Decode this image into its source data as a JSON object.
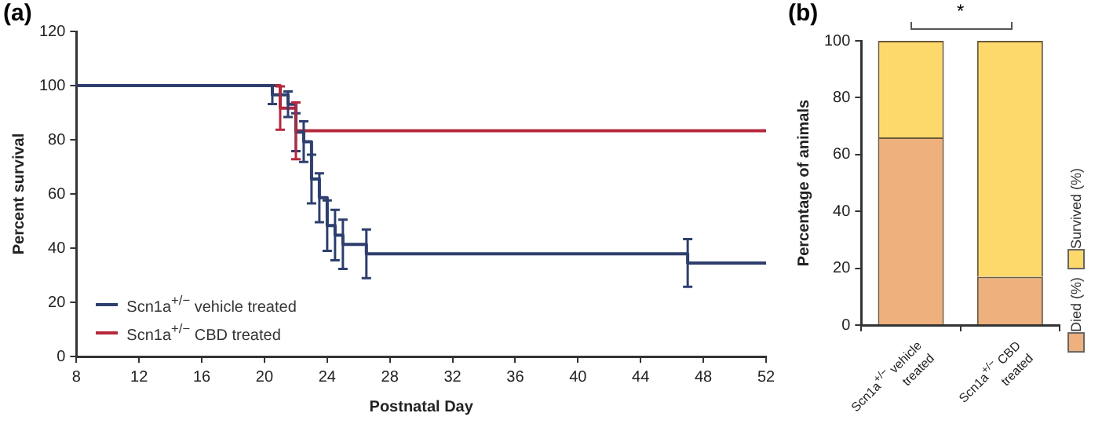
{
  "chart_data": [
    {
      "type": "step",
      "title": "(a)",
      "xlabel": "Postnatal Day",
      "ylabel": "Percent survival",
      "xlim": [
        8,
        52
      ],
      "xticks": [
        8,
        12,
        16,
        20,
        24,
        28,
        32,
        36,
        40,
        44,
        48,
        52
      ],
      "ylim": [
        0,
        120
      ],
      "yticks": [
        0,
        20,
        40,
        60,
        80,
        100,
        120
      ],
      "grid": false,
      "legend": "bottom left",
      "marker": "none",
      "series": [
        {
          "name": "Scn1a$^{+/−}$ vehicle treated",
          "color": "#2e3f6e",
          "x": [
            8,
            20.5,
            21.5,
            22,
            22.5,
            23,
            23.5,
            24,
            24.5,
            25,
            26.5,
            47,
            52
          ],
          "values": [
            100,
            96.6,
            93.1,
            82.8,
            79.3,
            65.5,
            58.6,
            48.3,
            44.8,
            41.4,
            37.9,
            34.5,
            34.5
          ],
          "errors": [
            null,
            3.4,
            4.7,
            7,
            7.5,
            9,
            9,
            9.3,
            9.3,
            9.1,
            9,
            8.8,
            null
          ]
        },
        {
          "name": "Scn1a$^{+/−}$ CBD treated",
          "color": "#b5283e",
          "x": [
            8,
            21,
            22,
            52
          ],
          "values": [
            100,
            91.7,
            83.3,
            83.3
          ],
          "errors": [
            null,
            8,
            10.5,
            null
          ]
        }
      ]
    },
    {
      "type": "bar",
      "title": "(b)",
      "ylabel": "Percentage of animals",
      "stacked": true,
      "categories": [
        "Scn1a$^{+/−}$ vehicle treated",
        "Scn1a$^{+/−}$ CBD treated"
      ],
      "ylim": [
        0,
        100
      ],
      "yticks": [
        0,
        20,
        40,
        60,
        80,
        100
      ],
      "grid": false,
      "legend": "right",
      "annotations": [
        "*"
      ],
      "series": [
        {
          "name": "Died (%)",
          "color": "#eeb07c",
          "values": [
            66,
            17
          ]
        },
        {
          "name": "Survived (%)",
          "color": "#fdd96c",
          "values": [
            34,
            83
          ]
        }
      ]
    }
  ]
}
